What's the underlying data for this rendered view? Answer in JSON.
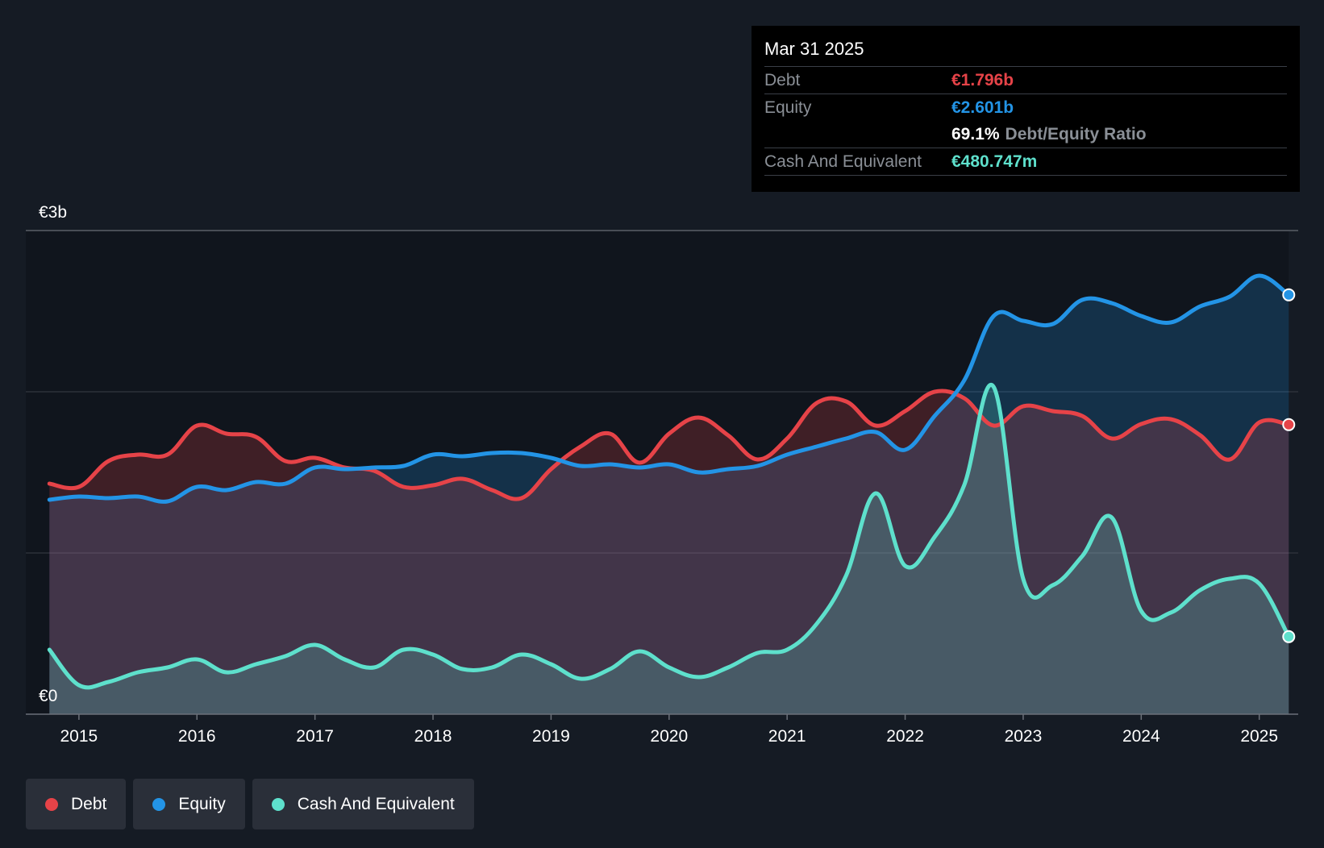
{
  "chart_data": {
    "type": "area",
    "title": "",
    "currency_unit": "€b",
    "y_axis": {
      "min": 0,
      "max": 3,
      "tick_labels": [
        "€0",
        "€3b"
      ],
      "gridlines": [
        0,
        1,
        2,
        3
      ]
    },
    "x_axis": {
      "min": 2014.55,
      "max": 2025.33,
      "tick_labels": [
        "2015",
        "2016",
        "2017",
        "2018",
        "2019",
        "2020",
        "2021",
        "2022",
        "2023",
        "2024",
        "2025"
      ],
      "ticks": [
        2015,
        2016,
        2017,
        2018,
        2019,
        2020,
        2021,
        2022,
        2023,
        2024,
        2025
      ]
    },
    "legend": {
      "position": "bottom-left"
    },
    "series": [
      {
        "name": "Debt",
        "color": "#e64348",
        "points": [
          [
            2014.75,
            1.43
          ],
          [
            2015.0,
            1.41
          ],
          [
            2015.25,
            1.57
          ],
          [
            2015.5,
            1.61
          ],
          [
            2015.75,
            1.61
          ],
          [
            2016.0,
            1.79
          ],
          [
            2016.25,
            1.74
          ],
          [
            2016.5,
            1.72
          ],
          [
            2016.75,
            1.57
          ],
          [
            2017.0,
            1.59
          ],
          [
            2017.25,
            1.53
          ],
          [
            2017.5,
            1.51
          ],
          [
            2017.75,
            1.41
          ],
          [
            2018.0,
            1.42
          ],
          [
            2018.25,
            1.46
          ],
          [
            2018.5,
            1.39
          ],
          [
            2018.75,
            1.34
          ],
          [
            2019.0,
            1.52
          ],
          [
            2019.25,
            1.66
          ],
          [
            2019.5,
            1.74
          ],
          [
            2019.75,
            1.56
          ],
          [
            2020.0,
            1.74
          ],
          [
            2020.25,
            1.84
          ],
          [
            2020.5,
            1.73
          ],
          [
            2020.75,
            1.58
          ],
          [
            2021.0,
            1.71
          ],
          [
            2021.25,
            1.93
          ],
          [
            2021.5,
            1.94
          ],
          [
            2021.75,
            1.79
          ],
          [
            2022.0,
            1.88
          ],
          [
            2022.25,
            2.0
          ],
          [
            2022.5,
            1.96
          ],
          [
            2022.75,
            1.79
          ],
          [
            2023.0,
            1.91
          ],
          [
            2023.25,
            1.88
          ],
          [
            2023.5,
            1.85
          ],
          [
            2023.75,
            1.71
          ],
          [
            2024.0,
            1.8
          ],
          [
            2024.25,
            1.83
          ],
          [
            2024.5,
            1.73
          ],
          [
            2024.75,
            1.58
          ],
          [
            2025.0,
            1.81
          ],
          [
            2025.25,
            1.796
          ]
        ]
      },
      {
        "name": "Equity",
        "color": "#2394e6",
        "points": [
          [
            2014.75,
            1.33
          ],
          [
            2015.0,
            1.35
          ],
          [
            2015.25,
            1.34
          ],
          [
            2015.5,
            1.35
          ],
          [
            2015.75,
            1.32
          ],
          [
            2016.0,
            1.41
          ],
          [
            2016.25,
            1.39
          ],
          [
            2016.5,
            1.44
          ],
          [
            2016.75,
            1.43
          ],
          [
            2017.0,
            1.53
          ],
          [
            2017.25,
            1.52
          ],
          [
            2017.5,
            1.53
          ],
          [
            2017.75,
            1.54
          ],
          [
            2018.0,
            1.61
          ],
          [
            2018.25,
            1.6
          ],
          [
            2018.5,
            1.62
          ],
          [
            2018.75,
            1.62
          ],
          [
            2019.0,
            1.59
          ],
          [
            2019.25,
            1.54
          ],
          [
            2019.5,
            1.55
          ],
          [
            2019.75,
            1.53
          ],
          [
            2020.0,
            1.55
          ],
          [
            2020.25,
            1.5
          ],
          [
            2020.5,
            1.52
          ],
          [
            2020.75,
            1.54
          ],
          [
            2021.0,
            1.61
          ],
          [
            2021.25,
            1.66
          ],
          [
            2021.5,
            1.71
          ],
          [
            2021.75,
            1.75
          ],
          [
            2022.0,
            1.64
          ],
          [
            2022.25,
            1.85
          ],
          [
            2022.5,
            2.07
          ],
          [
            2022.75,
            2.47
          ],
          [
            2023.0,
            2.44
          ],
          [
            2023.25,
            2.42
          ],
          [
            2023.5,
            2.57
          ],
          [
            2023.75,
            2.55
          ],
          [
            2024.0,
            2.47
          ],
          [
            2024.25,
            2.43
          ],
          [
            2024.5,
            2.53
          ],
          [
            2024.75,
            2.59
          ],
          [
            2025.0,
            2.72
          ],
          [
            2025.25,
            2.601
          ]
        ]
      },
      {
        "name": "Cash And Equivalent",
        "color": "#5ee0cc",
        "points": [
          [
            2014.75,
            0.4
          ],
          [
            2015.0,
            0.18
          ],
          [
            2015.25,
            0.2
          ],
          [
            2015.5,
            0.26
          ],
          [
            2015.75,
            0.29
          ],
          [
            2016.0,
            0.34
          ],
          [
            2016.25,
            0.26
          ],
          [
            2016.5,
            0.31
          ],
          [
            2016.75,
            0.36
          ],
          [
            2017.0,
            0.43
          ],
          [
            2017.25,
            0.34
          ],
          [
            2017.5,
            0.29
          ],
          [
            2017.75,
            0.4
          ],
          [
            2018.0,
            0.37
          ],
          [
            2018.25,
            0.28
          ],
          [
            2018.5,
            0.29
          ],
          [
            2018.75,
            0.37
          ],
          [
            2019.0,
            0.31
          ],
          [
            2019.25,
            0.22
          ],
          [
            2019.5,
            0.28
          ],
          [
            2019.75,
            0.39
          ],
          [
            2020.0,
            0.29
          ],
          [
            2020.25,
            0.23
          ],
          [
            2020.5,
            0.29
          ],
          [
            2020.75,
            0.38
          ],
          [
            2021.0,
            0.4
          ],
          [
            2021.25,
            0.56
          ],
          [
            2021.5,
            0.86
          ],
          [
            2021.75,
            1.37
          ],
          [
            2022.0,
            0.92
          ],
          [
            2022.25,
            1.1
          ],
          [
            2022.5,
            1.42
          ],
          [
            2022.75,
            2.03
          ],
          [
            2023.0,
            0.84
          ],
          [
            2023.25,
            0.8
          ],
          [
            2023.5,
            0.98
          ],
          [
            2023.75,
            1.22
          ],
          [
            2024.0,
            0.64
          ],
          [
            2024.25,
            0.63
          ],
          [
            2024.5,
            0.77
          ],
          [
            2024.75,
            0.84
          ],
          [
            2025.0,
            0.81
          ],
          [
            2025.25,
            0.481
          ]
        ]
      }
    ]
  },
  "tooltip": {
    "date": "Mar 31 2025",
    "debt_label": "Debt",
    "debt_value": "€1.796b",
    "equity_label": "Equity",
    "equity_value": "€2.601b",
    "ratio_value": "69.1%",
    "ratio_label": "Debt/Equity Ratio",
    "cash_label": "Cash And Equivalent",
    "cash_value": "€480.747m"
  },
  "legend_items": [
    {
      "label": "Debt",
      "color": "#e64348"
    },
    {
      "label": "Equity",
      "color": "#2394e6"
    },
    {
      "label": "Cash And Equivalent",
      "color": "#5ee0cc"
    }
  ],
  "colors": {
    "background": "#151b24",
    "tooltip_bg": "#000000",
    "debt": "#e64348",
    "equity": "#2394e6",
    "cash": "#5ee0cc"
  }
}
